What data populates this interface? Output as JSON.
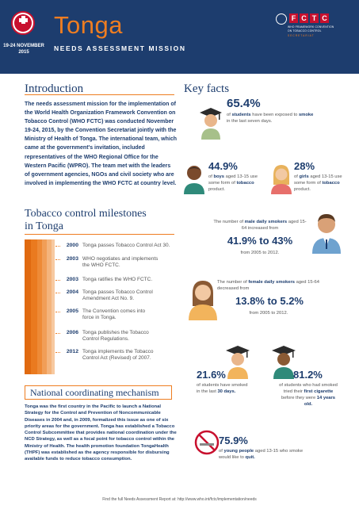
{
  "header": {
    "title": "Tonga",
    "subtitle": "NEEDS ASSESSMENT MISSION",
    "date_line1": "19-24 NOVEMBER",
    "date_line2": "2015",
    "logo_letters": [
      "F",
      "C",
      "T",
      "C"
    ],
    "logo_sub1": "WHO FRAMEWORK CONVENTION",
    "logo_sub2": "ON TOBACCO CONTROL",
    "logo_sub3": "SECRETARIAT"
  },
  "intro": {
    "heading": "Introduction",
    "text": "The needs assessment mission for the implementation of the World Health Organization Framework Convention on Tobacco Control (WHO FCTC) was conducted November 19-24, 2015, by the Convention Secretariat jointly with the Ministry of Health of Tonga. The international team, which came at the government's invitation, included representatives of the WHO Regional Office for the Western Pacific (WPRO). The team met with the leaders of government agencies, NGOs and civil society who are involved in implementing the WHO FCTC at country level."
  },
  "key_facts": {
    "heading": "Key facts",
    "f1_value": "65.4%",
    "f1_pre": "of",
    "f1_b1": "students",
    "f1_mid": "have been exposed to",
    "f1_b2": "smoke",
    "f1_post": "in the last seven days.",
    "f2_value": "44.9%",
    "f2_pre": "of",
    "f2_b1": "boys",
    "f2_mid": "aged 13-15 use some form of",
    "f2_b2": "tobacco",
    "f2_post": "product.",
    "f3_value": "28%",
    "f3_pre": "of",
    "f3_b1": "girls",
    "f3_mid": "aged 13-15 use some form of",
    "f3_b2": "tobacco",
    "f3_post": "product.",
    "f4_pre": "The number of",
    "f4_b1": "male daily smokers",
    "f4_post": "aged 15-64 increased from",
    "f4_value": "41.9% to 43%",
    "f4_range": "from 2005 to 2012.",
    "f5_pre": "The number of",
    "f5_b1": "female daily smokers",
    "f5_post": "aged 15-64 decreased from",
    "f5_value": "13.8% to 5.2%",
    "f5_range": "from 2005 to 2012.",
    "f6_value": "21.6%",
    "f6_pre": "of students have smoked in the last",
    "f6_b1": "30 days.",
    "f7_value": "81.2%",
    "f7_pre": "of students who had smoked tried their",
    "f7_b1": "first cigarette",
    "f7_mid": "before they were",
    "f7_b2": "14 years old.",
    "f8_value": "75.9%",
    "f8_pre": "of",
    "f8_b1": "young people",
    "f8_mid": "aged 13-15 who smoke would like to",
    "f8_b2": "quit."
  },
  "milestones": {
    "heading1": "Tobacco control milestones",
    "heading2": "in Tonga",
    "items": [
      {
        "year": "2000",
        "text": "Tonga passes Tobacco Control Act 30."
      },
      {
        "year": "2003",
        "text": "WHO negotiates and implements the WHO FCTC."
      },
      {
        "year": "2003",
        "text": "Tonga ratifies the WHO FCTC."
      },
      {
        "year": "2004",
        "text": "Tonga passes Tobacco Control Amendment Act No. 9."
      },
      {
        "year": "2005",
        "text": "The Convention comes into force in Tonga."
      },
      {
        "year": "2006",
        "text": "Tonga publishes the Tobacco Control Regulations."
      },
      {
        "year": "2012",
        "text": "Tonga implements the Tobacco Control Act (Revised) of 2007."
      }
    ]
  },
  "national": {
    "heading": "National coordinating mechanism",
    "text": "Tonga was the first country in the Pacific to launch a National Strategy for the Control and Prevention of Noncommunicable Diseases in 2004 and, in 2009, formalized this issue as one of six priority areas for the government. Tonga has established a Tobacco Control Subcommittee that provides national coordination under the NCD Strategy, as well as a focal point for tobacco control within the Ministry of Health. The health promotion foundation TongaHealth (THPF) was established as the agency responsible for disbursing available funds to reduce tobacco consumption."
  },
  "footer": {
    "text": "Find the full Needs Assessment Report at: http://www.who.int/fctc/implementation/needs"
  },
  "colors": {
    "navy": "#1d3d6e",
    "orange": "#ee7d21",
    "red": "#c8102e"
  }
}
